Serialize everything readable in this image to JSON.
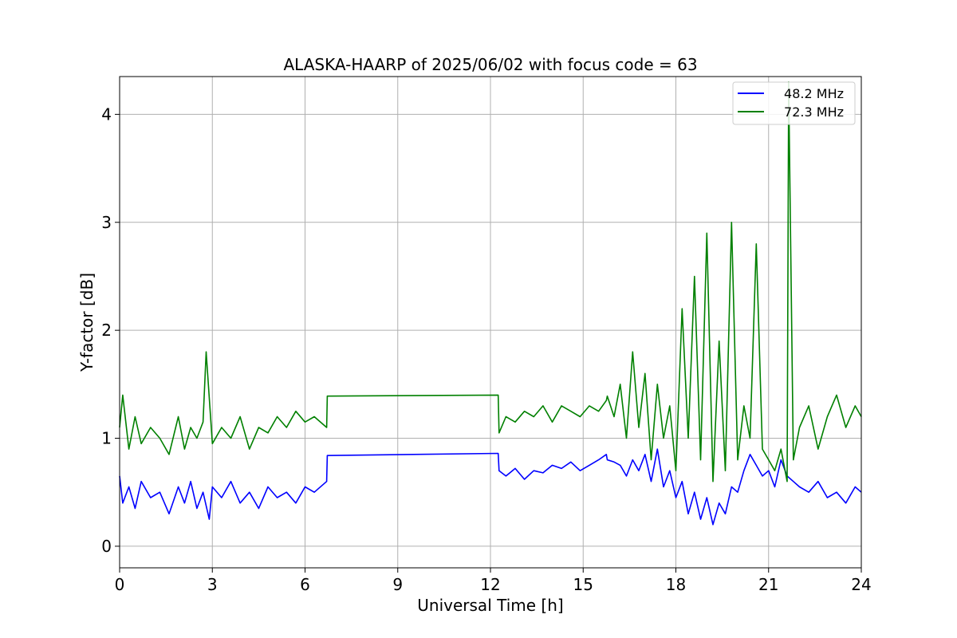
{
  "chart_data": {
    "type": "line",
    "title": "ALASKA-HAARP of 2025/06/02 with focus code = 63",
    "xlabel": "Universal Time [h]",
    "ylabel": "Y-factor [dB]",
    "xlim": [
      0,
      24
    ],
    "ylim": [
      -0.2,
      4.35
    ],
    "xticks": [
      0,
      3,
      6,
      9,
      12,
      15,
      18,
      21,
      24
    ],
    "yticks": [
      0,
      1,
      2,
      3,
      4
    ],
    "grid": true,
    "legend_position": "top-right",
    "series": [
      {
        "name": "48.2 MHz",
        "color": "#0000ff",
        "x": [
          0.0,
          0.1,
          0.3,
          0.5,
          0.7,
          1.0,
          1.3,
          1.6,
          1.9,
          2.1,
          2.3,
          2.5,
          2.7,
          2.9,
          3.0,
          3.3,
          3.6,
          3.9,
          4.2,
          4.5,
          4.8,
          5.1,
          5.4,
          5.7,
          6.0,
          6.3,
          6.7,
          6.72,
          12.25,
          12.28,
          12.5,
          12.8,
          13.1,
          13.4,
          13.7,
          14.0,
          14.3,
          14.6,
          14.9,
          15.2,
          15.5,
          15.75,
          15.78,
          16.0,
          16.2,
          16.4,
          16.6,
          16.8,
          17.0,
          17.2,
          17.4,
          17.6,
          17.8,
          18.0,
          18.2,
          18.4,
          18.6,
          18.8,
          19.0,
          19.2,
          19.4,
          19.6,
          19.8,
          20.0,
          20.2,
          20.4,
          20.6,
          20.8,
          21.0,
          21.2,
          21.4,
          21.6,
          21.8,
          22.0,
          22.3,
          22.6,
          22.9,
          23.2,
          23.5,
          23.8,
          24.0
        ],
        "values": [
          0.65,
          0.4,
          0.55,
          0.35,
          0.6,
          0.45,
          0.5,
          0.3,
          0.55,
          0.4,
          0.6,
          0.35,
          0.5,
          0.25,
          0.55,
          0.45,
          0.6,
          0.4,
          0.5,
          0.35,
          0.55,
          0.45,
          0.5,
          0.4,
          0.55,
          0.5,
          0.6,
          0.84,
          0.86,
          0.7,
          0.65,
          0.72,
          0.62,
          0.7,
          0.68,
          0.75,
          0.72,
          0.78,
          0.7,
          0.75,
          0.8,
          0.85,
          0.8,
          0.78,
          0.75,
          0.65,
          0.8,
          0.7,
          0.85,
          0.6,
          0.9,
          0.55,
          0.7,
          0.45,
          0.6,
          0.3,
          0.5,
          0.25,
          0.45,
          0.2,
          0.4,
          0.3,
          0.55,
          0.5,
          0.7,
          0.85,
          0.75,
          0.65,
          0.7,
          0.55,
          0.8,
          0.65,
          0.6,
          0.55,
          0.5,
          0.6,
          0.45,
          0.5,
          0.4,
          0.55,
          0.5
        ]
      },
      {
        "name": "72.3 MHz",
        "color": "#008000",
        "x": [
          0.0,
          0.1,
          0.3,
          0.5,
          0.7,
          1.0,
          1.3,
          1.6,
          1.9,
          2.1,
          2.3,
          2.5,
          2.7,
          2.8,
          3.0,
          3.3,
          3.6,
          3.9,
          4.2,
          4.5,
          4.8,
          5.1,
          5.4,
          5.7,
          6.0,
          6.3,
          6.7,
          6.72,
          12.25,
          12.28,
          12.5,
          12.8,
          13.1,
          13.4,
          13.7,
          14.0,
          14.3,
          14.6,
          14.9,
          15.2,
          15.5,
          15.75,
          15.78,
          16.0,
          16.2,
          16.4,
          16.6,
          16.8,
          17.0,
          17.2,
          17.4,
          17.6,
          17.8,
          18.0,
          18.2,
          18.4,
          18.6,
          18.8,
          19.0,
          19.2,
          19.4,
          19.6,
          19.8,
          20.0,
          20.2,
          20.4,
          20.6,
          20.8,
          21.0,
          21.2,
          21.4,
          21.6,
          21.65,
          21.8,
          22.0,
          22.3,
          22.6,
          22.9,
          23.2,
          23.5,
          23.8,
          24.0
        ],
        "values": [
          1.1,
          1.4,
          0.9,
          1.2,
          0.95,
          1.1,
          1.0,
          0.85,
          1.2,
          0.9,
          1.1,
          1.0,
          1.15,
          1.8,
          0.95,
          1.1,
          1.0,
          1.2,
          0.9,
          1.1,
          1.05,
          1.2,
          1.1,
          1.25,
          1.15,
          1.2,
          1.1,
          1.39,
          1.4,
          1.05,
          1.2,
          1.15,
          1.25,
          1.2,
          1.3,
          1.15,
          1.3,
          1.25,
          1.2,
          1.3,
          1.25,
          1.35,
          1.39,
          1.2,
          1.5,
          1.0,
          1.8,
          1.1,
          1.6,
          0.8,
          1.5,
          1.0,
          1.3,
          0.7,
          2.2,
          1.0,
          2.5,
          0.8,
          2.9,
          0.6,
          1.9,
          0.7,
          3.0,
          0.8,
          1.3,
          1.0,
          2.8,
          0.9,
          0.8,
          0.7,
          0.9,
          0.6,
          4.3,
          0.8,
          1.1,
          1.3,
          0.9,
          1.2,
          1.4,
          1.1,
          1.3,
          1.2
        ]
      }
    ]
  }
}
